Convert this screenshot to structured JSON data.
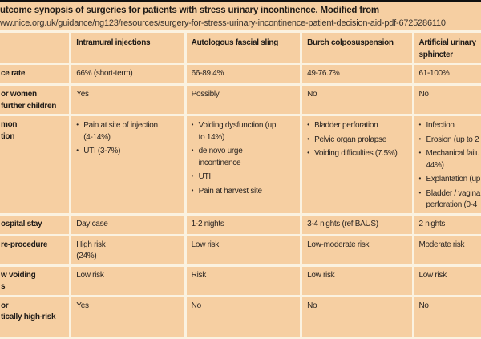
{
  "title": {
    "line1": "utcome synopsis of surgeries for patients with stress urinary incontinence. Modified from",
    "line2": "ww.nice.org.uk/guidance/ng123/resources/surgery-for-stress-urinary-incontinence-patient-decision-aid-pdf-6725286110"
  },
  "colors": {
    "cell_bg": "#f6cfa2",
    "gap_bg": "#fbf2e0",
    "top_bar": "#101010",
    "text": "#2a2522"
  },
  "table": {
    "column_headers": [
      [
        ""
      ],
      [
        "Intramural injections"
      ],
      [
        "Autologous fascial sling"
      ],
      [
        "Burch colposuspension"
      ],
      [
        "Artificial urinary",
        "sphincter"
      ]
    ],
    "rows": [
      {
        "label": [
          "ce rate"
        ],
        "cells": [
          [
            "66% (short-term)"
          ],
          [
            "66-89.4%"
          ],
          [
            "49-76.7%"
          ],
          [
            "61-100%"
          ]
        ]
      },
      {
        "label": [
          "or women",
          "further children"
        ],
        "cells": [
          [
            "Yes"
          ],
          [
            "Possibly"
          ],
          [
            "No"
          ],
          [
            "No"
          ]
        ]
      },
      {
        "label": [
          "mon",
          "tion"
        ],
        "cells": [
          [
            "• Pain at site of injection",
            "(4-14%)",
            "• UTI (3-7%)"
          ],
          [
            "• Voiding dysfunction (up",
            "to 14%)",
            "• de novo urge",
            "incontinence",
            "• UTI",
            "• Pain at harvest site"
          ],
          [
            "• Bladder perforation",
            "• Pelvic organ prolapse",
            "• Voiding difficulties (7.5%)"
          ],
          [
            "• Infection",
            "• Erosion (up to 2",
            "• Mechanical failu",
            "44%)",
            "• Explantation (up",
            "• Bladder / vagina",
            "perforation (0-4"
          ]
        ]
      },
      {
        "label": [
          "ospital stay"
        ],
        "cells": [
          [
            "Day case"
          ],
          [
            "1-2 nights"
          ],
          [
            "3-4 nights (ref BAUS)"
          ],
          [
            "2 nights"
          ]
        ]
      },
      {
        "label": [
          "re-procedure"
        ],
        "cells": [
          [
            "High risk",
            "(24%)"
          ],
          [
            "Low risk"
          ],
          [
            "Low-moderate risk"
          ],
          [
            "Moderate risk"
          ]
        ]
      },
      {
        "label": [
          "w voiding",
          "s"
        ],
        "cells": [
          [
            "Low risk"
          ],
          [
            "Risk"
          ],
          [
            "Low risk"
          ],
          [
            "Low risk"
          ]
        ]
      },
      {
        "label": [
          "or",
          "tically high-risk"
        ],
        "cells": [
          [
            "Yes"
          ],
          [
            "No"
          ],
          [
            "No"
          ],
          [
            "No"
          ]
        ]
      }
    ]
  }
}
